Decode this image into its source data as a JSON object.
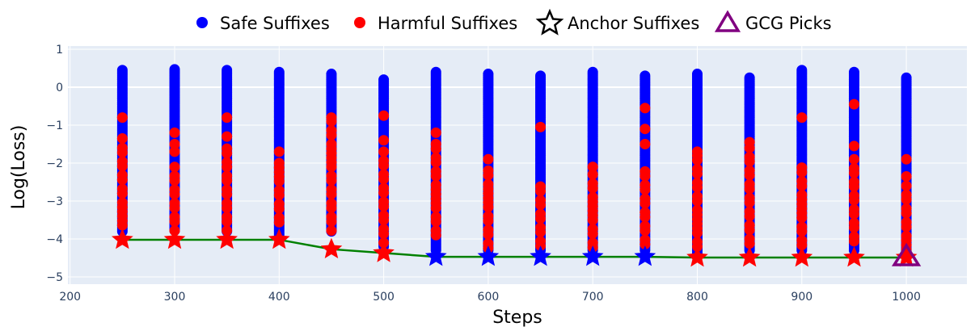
{
  "chart_data": {
    "type": "scatter",
    "xlabel": "Steps",
    "ylabel": "Log(Loss)",
    "xlim": [
      200,
      1060
    ],
    "ylim": [
      -5.2,
      1.1
    ],
    "xticks": [
      200,
      300,
      400,
      500,
      600,
      700,
      800,
      900,
      1000
    ],
    "yticks": [
      1,
      0,
      -1,
      -2,
      -3,
      -4,
      -5
    ],
    "ytick_labels": [
      "1",
      "0",
      "−1",
      "−2",
      "−3",
      "−4",
      "−5"
    ],
    "grid": true,
    "legend_position": "top",
    "background": "#e5ecf6",
    "legend": [
      {
        "name": "Safe Suffixes",
        "marker": "circle",
        "color": "#0000ff"
      },
      {
        "name": "Harmful Suffixes",
        "marker": "circle",
        "color": "#ff0000"
      },
      {
        "name": "Anchor Suffixes",
        "marker": "star-open",
        "color": "#000000"
      },
      {
        "name": "GCG Picks",
        "marker": "triangle-open",
        "color": "#800080"
      }
    ],
    "columns": [
      {
        "step": 250,
        "safe": [
          -3.8,
          0.45
        ],
        "harmful_dense": [
          -3.8,
          -1.6
        ],
        "harmful_outliers": [
          -0.8,
          -1.35
        ]
      },
      {
        "step": 300,
        "safe": [
          -3.8,
          0.47
        ],
        "harmful_dense": [
          -3.8,
          -2.1
        ],
        "harmful_outliers": [
          -1.2,
          -1.5,
          -1.7
        ]
      },
      {
        "step": 350,
        "safe": [
          -3.8,
          0.45
        ],
        "harmful_dense": [
          -3.8,
          -1.5
        ],
        "harmful_outliers": [
          -0.8,
          -1.3
        ]
      },
      {
        "step": 400,
        "safe": [
          -3.9,
          0.4
        ],
        "harmful_dense": [
          -3.6,
          -2.0
        ],
        "harmful_outliers": [
          -1.7
        ]
      },
      {
        "step": 450,
        "safe": [
          -3.8,
          0.35
        ],
        "harmful_dense": [
          -3.8,
          -0.9
        ],
        "harmful_outliers": [
          -0.8
        ]
      },
      {
        "step": 500,
        "safe": [
          -4.2,
          0.2
        ],
        "harmful_dense": [
          -4.2,
          -1.7
        ],
        "harmful_outliers": [
          -0.75,
          -1.4
        ]
      },
      {
        "step": 550,
        "safe": [
          -4.3,
          0.4
        ],
        "harmful_dense": [
          -4.0,
          -1.5
        ],
        "harmful_outliers": [
          -1.2
        ]
      },
      {
        "step": 600,
        "safe": [
          -4.3,
          0.35
        ],
        "harmful_dense": [
          -4.3,
          -2.2
        ],
        "harmful_outliers": [
          -1.9
        ]
      },
      {
        "step": 650,
        "safe": [
          -4.3,
          0.3
        ],
        "harmful_dense": [
          -4.2,
          -2.5
        ],
        "harmful_outliers": [
          -1.05
        ]
      },
      {
        "step": 700,
        "safe": [
          -4.3,
          0.4
        ],
        "harmful_dense": [
          -4.3,
          -2.3
        ],
        "harmful_outliers": [
          -2.1
        ]
      },
      {
        "step": 750,
        "safe": [
          -4.3,
          0.3
        ],
        "harmful_dense": [
          -4.3,
          -2.1
        ],
        "harmful_outliers": [
          -0.55,
          -1.1,
          -1.5
        ]
      },
      {
        "step": 800,
        "safe": [
          -4.4,
          0.35
        ],
        "harmful_dense": [
          -4.4,
          -1.8
        ],
        "harmful_outliers": [
          -1.7
        ]
      },
      {
        "step": 850,
        "safe": [
          -4.3,
          0.25
        ],
        "harmful_dense": [
          -4.3,
          -1.6
        ],
        "harmful_outliers": [
          -1.45
        ]
      },
      {
        "step": 900,
        "safe": [
          -4.3,
          0.45
        ],
        "harmful_dense": [
          -4.3,
          -2.0
        ],
        "harmful_outliers": [
          -0.8
        ]
      },
      {
        "step": 950,
        "safe": [
          -4.3,
          0.4
        ],
        "harmful_dense": [
          -4.3,
          -1.9
        ],
        "harmful_outliers": [
          -0.45,
          -1.55
        ]
      },
      {
        "step": 1000,
        "safe": [
          -4.4,
          0.25
        ],
        "harmful_dense": [
          -4.4,
          -2.6
        ],
        "harmful_outliers": [
          -1.9,
          -2.35
        ]
      }
    ],
    "anchor_line_color": "#008000",
    "anchors": [
      {
        "step": 250,
        "value": -4.02,
        "color": "#ff0000"
      },
      {
        "step": 300,
        "value": -4.02,
        "color": "#ff0000"
      },
      {
        "step": 350,
        "value": -4.02,
        "color": "#ff0000"
      },
      {
        "step": 400,
        "value": -4.02,
        "color": "#ff0000"
      },
      {
        "step": 450,
        "value": -4.27,
        "color": "#ff0000"
      },
      {
        "step": 500,
        "value": -4.37,
        "color": "#ff0000"
      },
      {
        "step": 550,
        "value": -4.47,
        "color": "#0000ff"
      },
      {
        "step": 600,
        "value": -4.47,
        "color": "#0000ff"
      },
      {
        "step": 650,
        "value": -4.47,
        "color": "#0000ff"
      },
      {
        "step": 700,
        "value": -4.47,
        "color": "#0000ff"
      },
      {
        "step": 750,
        "value": -4.47,
        "color": "#0000ff"
      },
      {
        "step": 800,
        "value": -4.49,
        "color": "#ff0000"
      },
      {
        "step": 850,
        "value": -4.49,
        "color": "#ff0000"
      },
      {
        "step": 900,
        "value": -4.49,
        "color": "#ff0000"
      },
      {
        "step": 950,
        "value": -4.49,
        "color": "#ff0000"
      },
      {
        "step": 1000,
        "value": -4.49,
        "color": "#ff0000"
      }
    ],
    "gcg_picks": [
      {
        "step": 1000,
        "value": -4.49
      }
    ]
  }
}
